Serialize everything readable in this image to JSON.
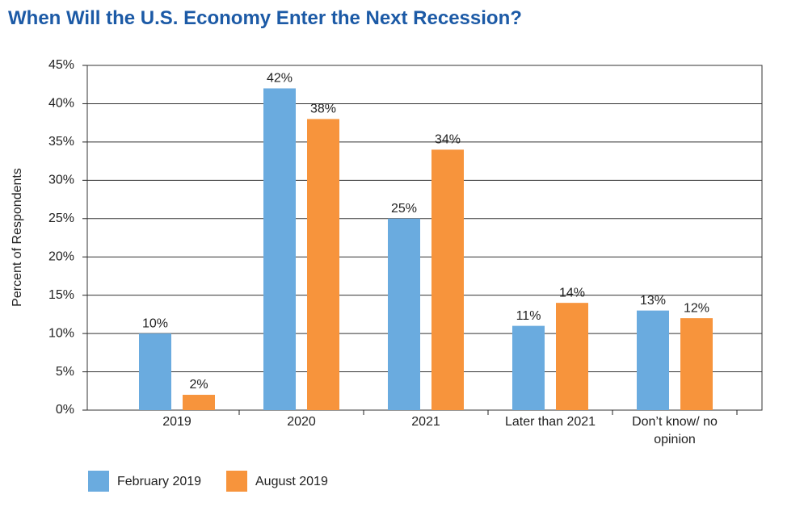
{
  "chart_data": {
    "type": "bar",
    "title": "When Will the U.S. Economy Enter the Next Recession?",
    "y_label": "Percent of Respondents",
    "categories": [
      "2019",
      "2020",
      "2021",
      "Later than 2021",
      "Don’t know/ no opinion"
    ],
    "series": [
      {
        "name": "February 2019",
        "color": "#6aabdf",
        "values": [
          10,
          42,
          25,
          11,
          13
        ],
        "value_labels": [
          "10%",
          "42%",
          "25%",
          "11%",
          "13%"
        ]
      },
      {
        "name": "August 2019",
        "color": "#f7943c",
        "values": [
          2,
          38,
          34,
          14,
          12
        ],
        "value_labels": [
          "2%",
          "38%",
          "34%",
          "14%",
          "12%"
        ]
      }
    ],
    "ylim": [
      0,
      45
    ],
    "yticks": [
      {
        "value": 0,
        "label": "0%"
      },
      {
        "value": 5,
        "label": "5%"
      },
      {
        "value": 10,
        "label": "10%"
      },
      {
        "value": 15,
        "label": "15%"
      },
      {
        "value": 20,
        "label": "20%"
      },
      {
        "value": 25,
        "label": "25%"
      },
      {
        "value": 30,
        "label": "30%"
      },
      {
        "value": 35,
        "label": "35%"
      },
      {
        "value": 40,
        "label": "40%"
      },
      {
        "value": 45,
        "label": "45%"
      }
    ],
    "grid": true
  }
}
